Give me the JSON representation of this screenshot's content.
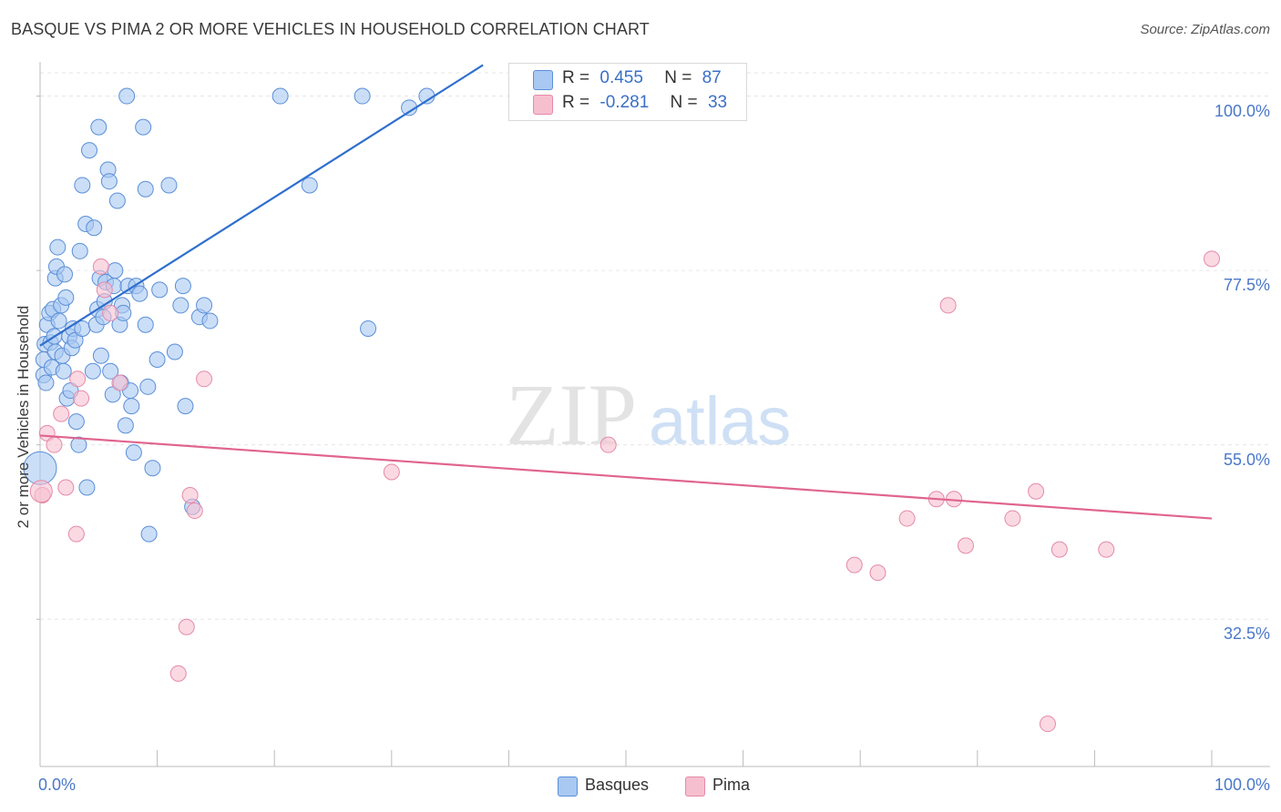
{
  "title": "BASQUE VS PIMA 2 OR MORE VEHICLES IN HOUSEHOLD CORRELATION CHART",
  "source": "Source: ZipAtlas.com",
  "watermark": {
    "zip": "ZIP",
    "atlas": "atlas"
  },
  "colors": {
    "basques_fill": "#a9c8f2",
    "basques_stroke": "#5a8fd8",
    "basques_line": "#2f6fce",
    "pima_fill": "#f6bfd0",
    "pima_stroke": "#e58aa8",
    "pima_line": "#e0648f",
    "axis_label": "#4a78c9",
    "grid": "#e6e6e6"
  },
  "legend": {
    "rows": [
      {
        "r_label": "R =",
        "r_value": "0.455",
        "n_label": "N =",
        "n_value": "87"
      },
      {
        "r_label": "R =",
        "r_value": "-0.281",
        "n_label": "N =",
        "n_value": "33"
      }
    ]
  },
  "bottom_legend": {
    "basques": "Basques",
    "pima": "Pima"
  },
  "chart_data": {
    "type": "scatter",
    "title": "BASQUE VS PIMA 2 OR MORE VEHICLES IN HOUSEHOLD CORRELATION CHART",
    "xlabel": "",
    "ylabel": "2 or more Vehicles in Household",
    "x_tick_labels": [
      "0.0%",
      "100.0%"
    ],
    "y_tick_labels": [
      "100.0%",
      "77.5%",
      "55.0%",
      "32.5%"
    ],
    "y_ticks": [
      100.0,
      77.5,
      55.0,
      32.5
    ],
    "xlim": [
      0,
      100
    ],
    "ylim": [
      13.5,
      103
    ],
    "legend_position": "top-center",
    "series": [
      {
        "name": "Basques",
        "r": 0.455,
        "n": 87,
        "trend": {
          "x": [
            0.0,
            37.8
          ],
          "y": [
            67.8,
            104.0
          ]
        },
        "points": [
          [
            0.3,
            64.0
          ],
          [
            0.3,
            66.0
          ],
          [
            0.4,
            68.0
          ],
          [
            0.6,
            70.5
          ],
          [
            0.8,
            72.0
          ],
          [
            0.9,
            68.2
          ],
          [
            1.0,
            65.0
          ],
          [
            0.5,
            63.0
          ],
          [
            1.1,
            72.5
          ],
          [
            1.2,
            69.0
          ],
          [
            1.3,
            67.0
          ],
          [
            1.3,
            76.5
          ],
          [
            1.4,
            78.0
          ],
          [
            1.5,
            80.5
          ],
          [
            1.6,
            71.0
          ],
          [
            1.8,
            73.0
          ],
          [
            1.9,
            66.5
          ],
          [
            2.0,
            64.5
          ],
          [
            2.1,
            77.0
          ],
          [
            2.2,
            74.0
          ],
          [
            2.3,
            61.0
          ],
          [
            2.5,
            69.0
          ],
          [
            2.6,
            62.0
          ],
          [
            2.7,
            67.5
          ],
          [
            2.8,
            70.0
          ],
          [
            3.0,
            68.5
          ],
          [
            3.1,
            58.0
          ],
          [
            3.3,
            55.0
          ],
          [
            3.4,
            80.0
          ],
          [
            3.6,
            70.0
          ],
          [
            3.6,
            88.5
          ],
          [
            3.9,
            83.5
          ],
          [
            4.0,
            49.5
          ],
          [
            4.2,
            93.0
          ],
          [
            4.5,
            64.5
          ],
          [
            4.6,
            83.0
          ],
          [
            4.8,
            70.5
          ],
          [
            4.9,
            72.5
          ],
          [
            5.0,
            96.0
          ],
          [
            5.1,
            76.5
          ],
          [
            5.2,
            66.5
          ],
          [
            5.4,
            71.5
          ],
          [
            5.5,
            73.5
          ],
          [
            5.6,
            76.0
          ],
          [
            5.8,
            90.5
          ],
          [
            5.9,
            89.0
          ],
          [
            6.0,
            64.5
          ],
          [
            6.2,
            61.5
          ],
          [
            6.3,
            75.5
          ],
          [
            6.4,
            77.5
          ],
          [
            6.6,
            86.5
          ],
          [
            6.8,
            70.5
          ],
          [
            6.9,
            63.0
          ],
          [
            7.0,
            73.0
          ],
          [
            7.1,
            72.0
          ],
          [
            7.3,
            57.5
          ],
          [
            7.4,
            100.0
          ],
          [
            7.5,
            75.5
          ],
          [
            7.7,
            62.0
          ],
          [
            7.8,
            60.0
          ],
          [
            8.0,
            54.0
          ],
          [
            8.2,
            75.5
          ],
          [
            8.5,
            74.5
          ],
          [
            8.8,
            96.0
          ],
          [
            9.0,
            70.5
          ],
          [
            9.0,
            88.0
          ],
          [
            9.2,
            62.5
          ],
          [
            9.3,
            43.5
          ],
          [
            9.6,
            52.0
          ],
          [
            10.0,
            66.0
          ],
          [
            10.2,
            75.0
          ],
          [
            11.0,
            88.5
          ],
          [
            11.5,
            67.0
          ],
          [
            12.0,
            73.0
          ],
          [
            12.2,
            75.5
          ],
          [
            12.4,
            60.0
          ],
          [
            13.0,
            47.0
          ],
          [
            13.6,
            71.5
          ],
          [
            14.0,
            73.0
          ],
          [
            14.5,
            71.0
          ],
          [
            20.5,
            100.0
          ],
          [
            23.0,
            88.5
          ],
          [
            27.5,
            100.0
          ],
          [
            28.0,
            70.0
          ],
          [
            31.5,
            98.5
          ],
          [
            33.0,
            100.0
          ],
          [
            0.0,
            52.0
          ]
        ]
      },
      {
        "name": "Pima",
        "r": -0.281,
        "n": 33,
        "trend": {
          "x": [
            0.0,
            100.0
          ],
          "y": [
            56.2,
            45.5
          ]
        },
        "points": [
          [
            0.2,
            48.5
          ],
          [
            0.6,
            56.5
          ],
          [
            1.2,
            55.0
          ],
          [
            1.8,
            59.0
          ],
          [
            2.2,
            49.5
          ],
          [
            3.1,
            43.5
          ],
          [
            3.2,
            63.5
          ],
          [
            3.5,
            61.0
          ],
          [
            5.2,
            78.0
          ],
          [
            5.5,
            75.0
          ],
          [
            6.0,
            72.0
          ],
          [
            6.8,
            63.0
          ],
          [
            11.8,
            25.5
          ],
          [
            12.5,
            31.5
          ],
          [
            12.8,
            48.5
          ],
          [
            13.2,
            46.5
          ],
          [
            14.0,
            63.5
          ],
          [
            30.0,
            51.5
          ],
          [
            48.5,
            55.0
          ],
          [
            69.5,
            39.5
          ],
          [
            71.5,
            38.5
          ],
          [
            74.0,
            45.5
          ],
          [
            76.5,
            48.0
          ],
          [
            77.5,
            73.0
          ],
          [
            78.0,
            48.0
          ],
          [
            79.0,
            42.0
          ],
          [
            83.0,
            45.5
          ],
          [
            85.0,
            49.0
          ],
          [
            86.0,
            19.0
          ],
          [
            87.0,
            41.5
          ],
          [
            91.0,
            41.5
          ],
          [
            100.0,
            79.0
          ],
          [
            0.1,
            49.0
          ]
        ]
      }
    ]
  }
}
